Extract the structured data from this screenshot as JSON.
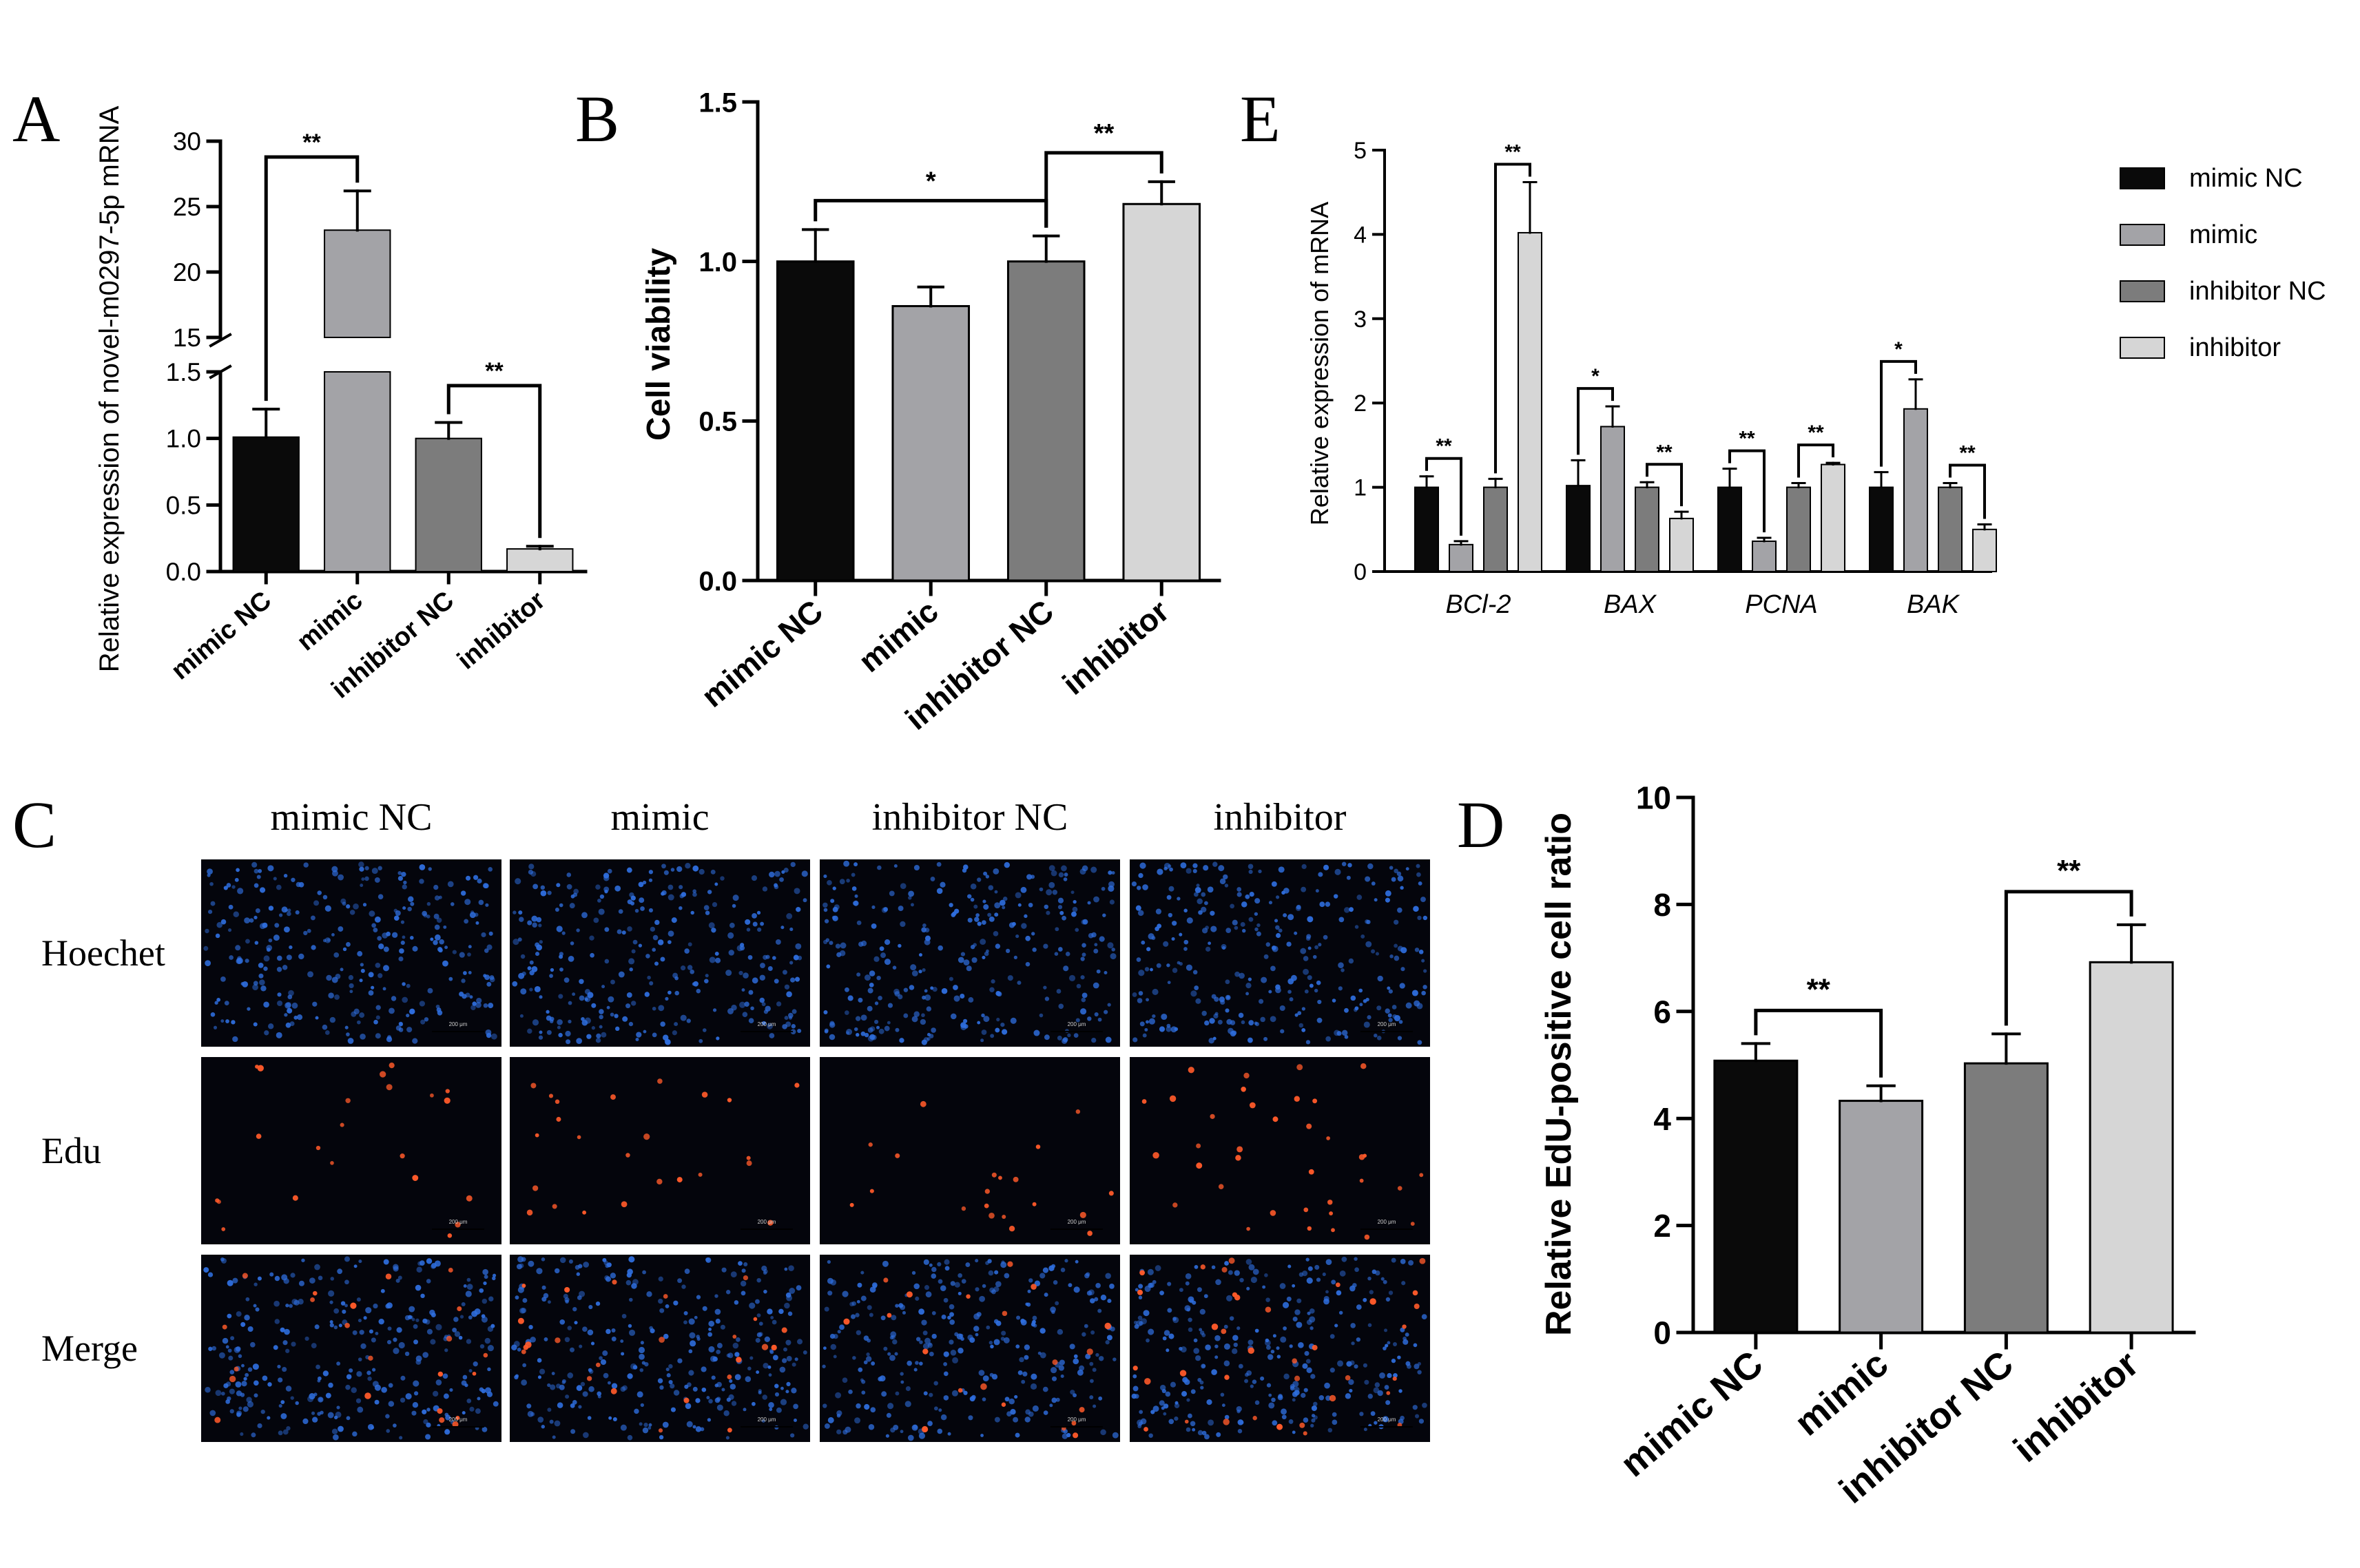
{
  "colors": {
    "mimic_nc": "#0a0a0a",
    "mimic": "#a3a3a7",
    "inhibitor_nc": "#7c7c7c",
    "inhibitor": "#d6d6d6",
    "hoechst_cell": "#2f6fe0",
    "edu_cell": "#ff5a2a",
    "micrograph_bg": "#04050c"
  },
  "panels": {
    "A": "A",
    "B": "B",
    "C": "C",
    "D": "D",
    "E": "E"
  },
  "microscopy": {
    "columns": [
      "mimic NC",
      "mimic",
      "inhibitor NC",
      "inhibitor"
    ],
    "rows": [
      "Hoechet",
      "Edu",
      "Merge"
    ],
    "scale_bar": "200 μm"
  },
  "chart_data": [
    {
      "panel": "A",
      "type": "bar",
      "ylabel": "Relative expression of novel-m0297-5p mRNA",
      "categories": [
        "mimic NC",
        "mimic",
        "inhibitor NC",
        "inhibitor"
      ],
      "values": [
        1.01,
        23.2,
        1.0,
        0.17
      ],
      "errors": [
        0.21,
        3.0,
        0.12,
        0.02
      ],
      "axis_break": true,
      "ylim_lower": [
        0,
        1.5
      ],
      "ylim_upper": [
        15,
        30
      ],
      "yticks_lower": [
        "0.0",
        "0.5",
        "1.0",
        "1.5"
      ],
      "yticks_upper": [
        "15",
        "20",
        "25",
        "30"
      ],
      "significance": [
        {
          "from": 0,
          "to": 1,
          "label": "**"
        },
        {
          "from": 2,
          "to": 3,
          "label": "**"
        }
      ]
    },
    {
      "panel": "B",
      "type": "bar",
      "ylabel": "Cell viability",
      "categories": [
        "mimic NC",
        "mimic",
        "inhibitor NC",
        "inhibitor"
      ],
      "values": [
        1.0,
        0.86,
        1.0,
        1.18
      ],
      "errors": [
        0.1,
        0.06,
        0.08,
        0.07
      ],
      "ylim": [
        0,
        1.5
      ],
      "yticks": [
        "0.0",
        "0.5",
        "1.0",
        "1.5"
      ],
      "significance": [
        {
          "from": 0,
          "to": 2,
          "label": "*"
        },
        {
          "from": 2,
          "to": 3,
          "label": "**"
        }
      ]
    },
    {
      "panel": "D",
      "type": "bar",
      "ylabel": "Relative EdU-positive cell ratio",
      "categories": [
        "mimic NC",
        "mimic",
        "inhibitor NC",
        "inhibitor"
      ],
      "values": [
        5.08,
        4.33,
        5.03,
        6.92
      ],
      "errors": [
        0.32,
        0.28,
        0.55,
        0.7
      ],
      "ylim": [
        0,
        10
      ],
      "yticks": [
        "0",
        "2",
        "4",
        "6",
        "8",
        "10"
      ],
      "significance": [
        {
          "from": 0,
          "to": 1,
          "label": "**"
        },
        {
          "from": 2,
          "to": 3,
          "label": "**"
        }
      ]
    },
    {
      "panel": "E",
      "type": "bar",
      "ylabel": "Relative expression of mRNA",
      "categories": [
        "BCl-2",
        "BAX",
        "PCNA",
        "BAK"
      ],
      "series": [
        {
          "name": "mimic NC",
          "values": [
            1.0,
            1.02,
            1.0,
            1.0
          ],
          "errors": [
            0.13,
            0.3,
            0.22,
            0.18
          ]
        },
        {
          "name": "mimic",
          "values": [
            0.32,
            1.72,
            0.36,
            1.93
          ],
          "errors": [
            0.04,
            0.24,
            0.04,
            0.35
          ]
        },
        {
          "name": "inhibitor NC",
          "values": [
            1.0,
            1.0,
            1.0,
            1.0
          ],
          "errors": [
            0.1,
            0.06,
            0.05,
            0.05
          ]
        },
        {
          "name": "inhibitor",
          "values": [
            4.02,
            0.63,
            1.27,
            0.5
          ],
          "errors": [
            0.6,
            0.08,
            0.02,
            0.06
          ]
        }
      ],
      "ylim": [
        0,
        5
      ],
      "yticks": [
        "0",
        "1",
        "2",
        "3",
        "4",
        "5"
      ],
      "legend_position": "right",
      "significance": [
        {
          "group": 0,
          "from": 0,
          "to": 1,
          "label": "**"
        },
        {
          "group": 0,
          "from": 2,
          "to": 3,
          "label": "**"
        },
        {
          "group": 1,
          "from": 0,
          "to": 1,
          "label": "*"
        },
        {
          "group": 1,
          "from": 2,
          "to": 3,
          "label": "**"
        },
        {
          "group": 2,
          "from": 0,
          "to": 1,
          "label": "**"
        },
        {
          "group": 2,
          "from": 2,
          "to": 3,
          "label": "**"
        },
        {
          "group": 3,
          "from": 0,
          "to": 1,
          "label": "*"
        },
        {
          "group": 3,
          "from": 2,
          "to": 3,
          "label": "**"
        }
      ]
    }
  ]
}
